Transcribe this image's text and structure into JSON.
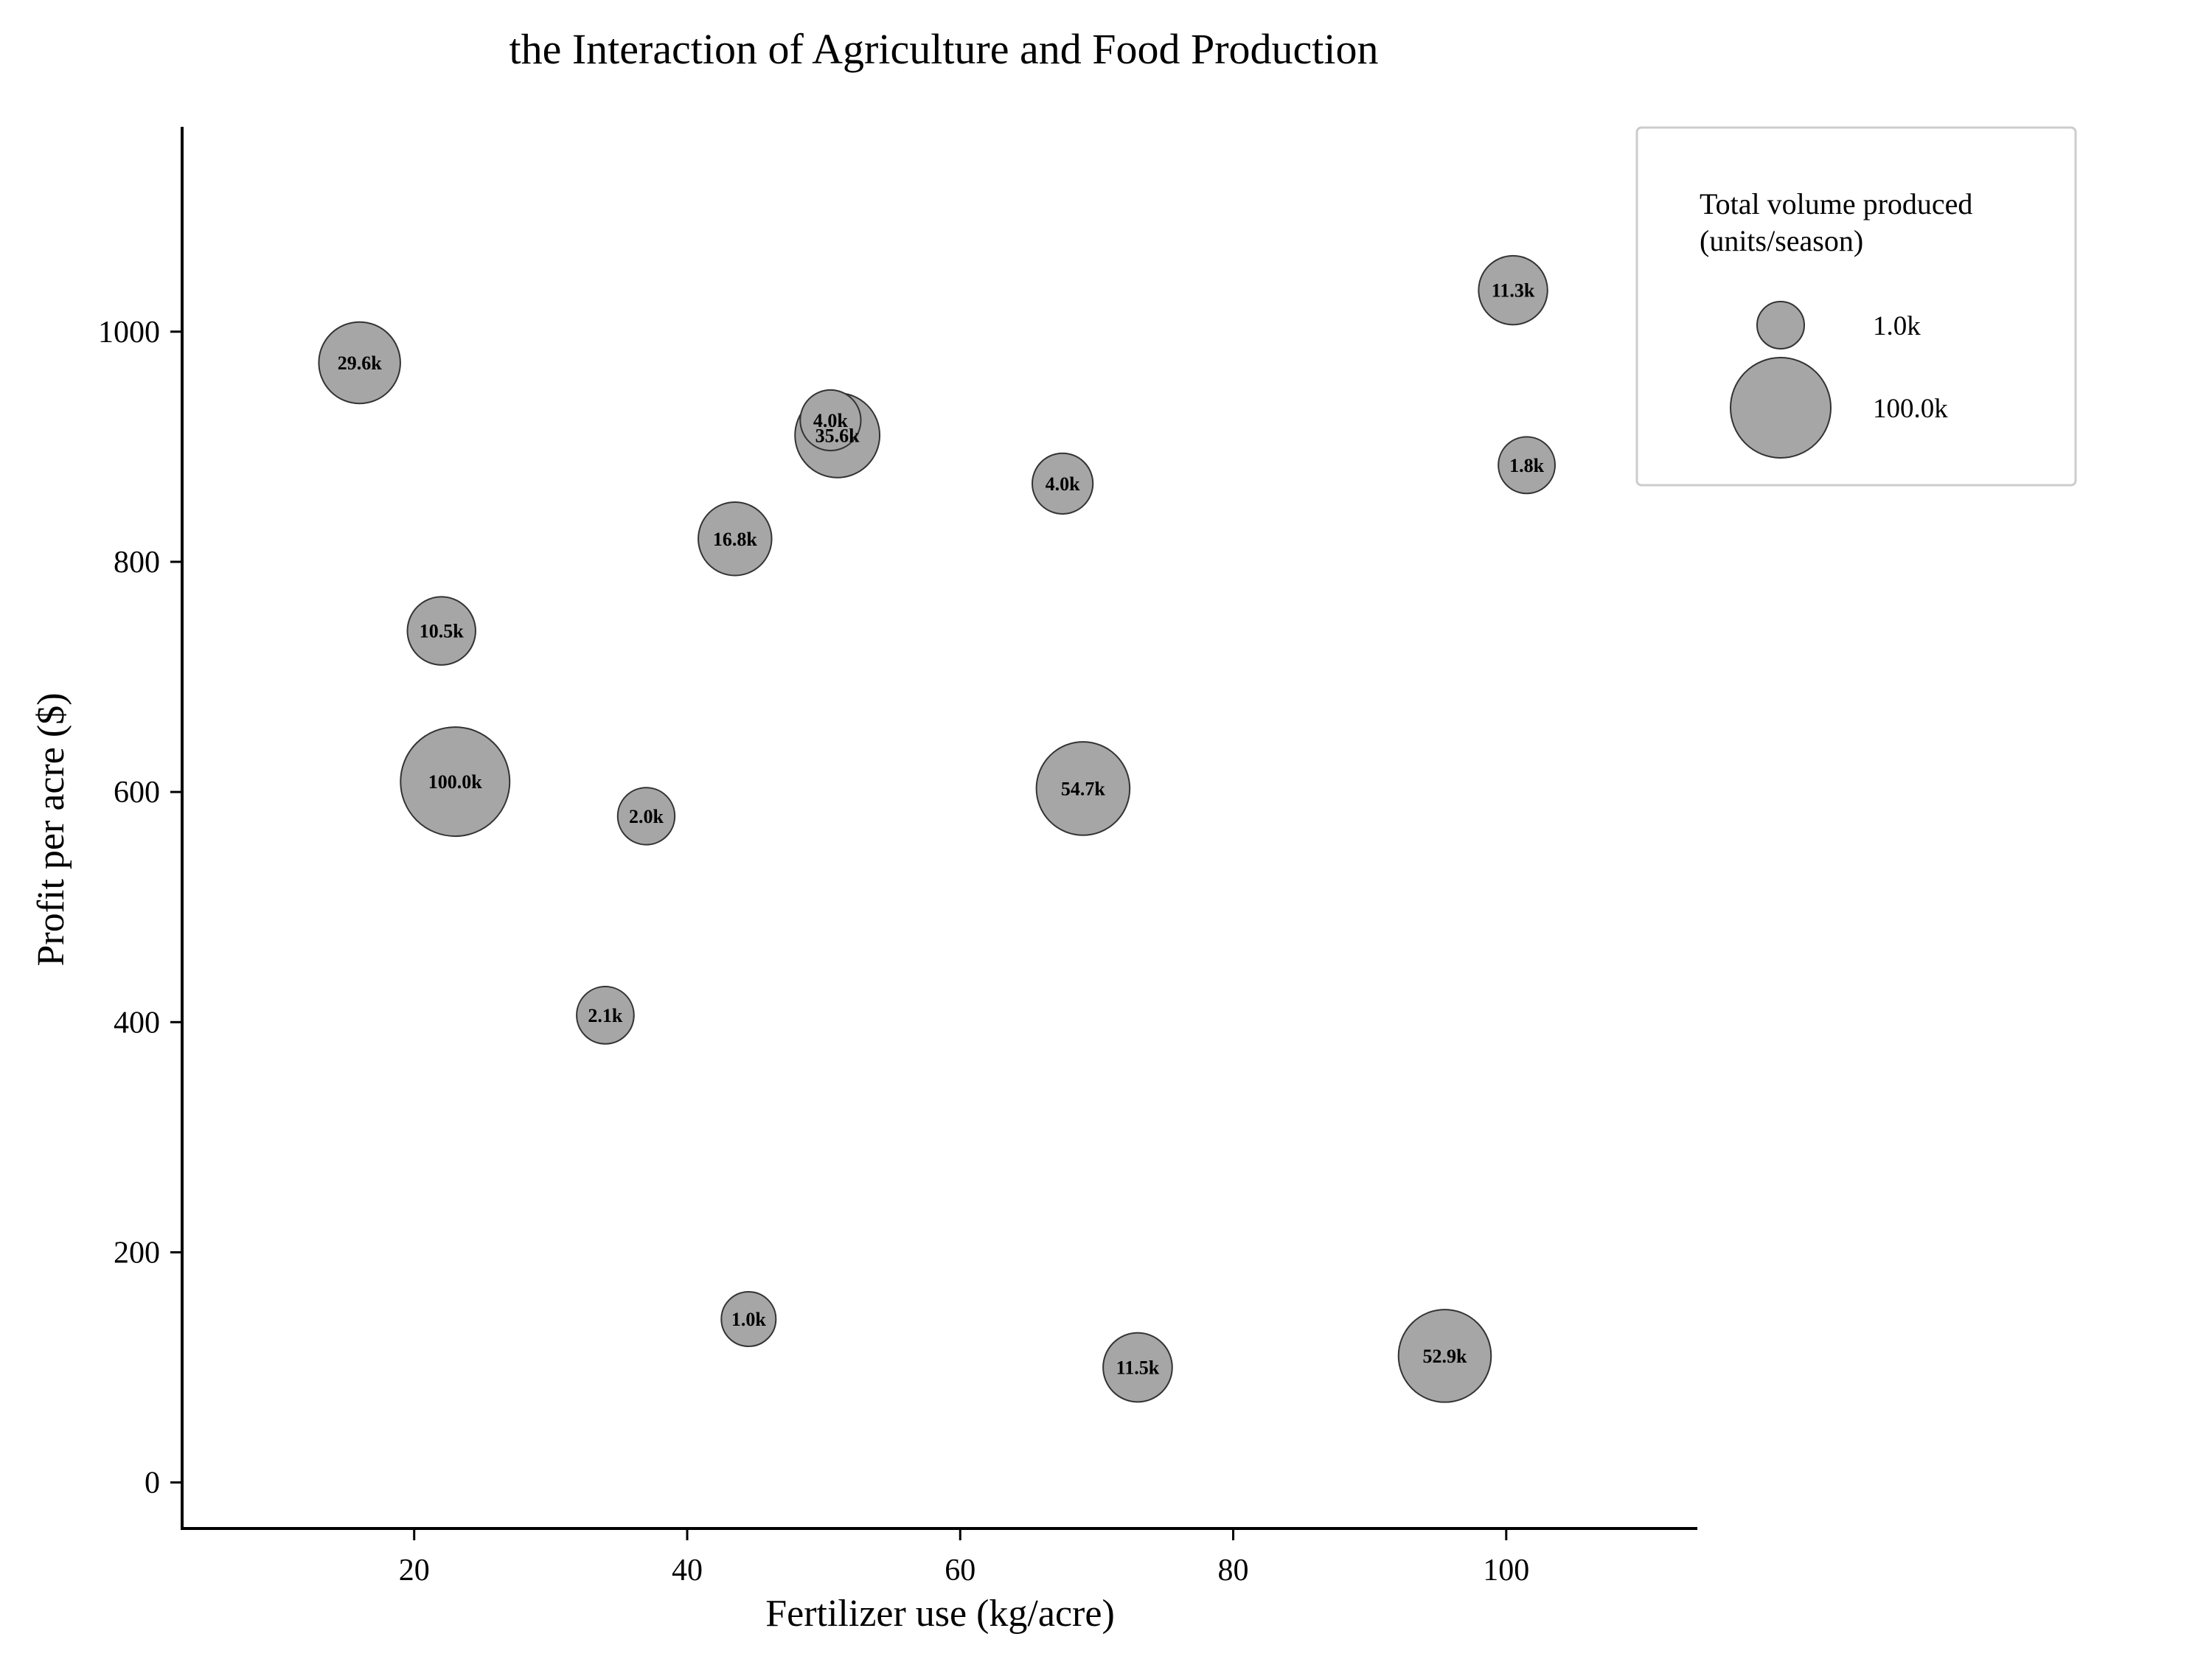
{
  "chart_data": {
    "type": "scatter",
    "title": "the Interaction of Agriculture and Food Production",
    "xlabel": "Fertilizer use (kg/acre)",
    "ylabel": "Profit per acre ($)",
    "xlim": [
      3,
      114
    ],
    "ylim": [
      -40,
      1178
    ],
    "xticks": [
      20,
      40,
      60,
      80,
      100
    ],
    "yticks": [
      0,
      200,
      400,
      600,
      800,
      1000
    ],
    "grid": false,
    "size_legend": {
      "title_lines": [
        "Total volume produced",
        "(units/season)"
      ],
      "placement": "top-right, outside plot",
      "entries": [
        {
          "label": "1.0k",
          "value": 1000
        },
        {
          "label": "100.0k",
          "value": 100000
        }
      ]
    },
    "points": [
      {
        "x": 16.0,
        "y": 973,
        "size": 29600,
        "label": "29.6k"
      },
      {
        "x": 22.0,
        "y": 740,
        "size": 10500,
        "label": "10.5k"
      },
      {
        "x": 23.0,
        "y": 609,
        "size": 100000,
        "label": "100.0k"
      },
      {
        "x": 37.0,
        "y": 579,
        "size": 2000,
        "label": "2.0k"
      },
      {
        "x": 34.0,
        "y": 406,
        "size": 2100,
        "label": "2.1k"
      },
      {
        "x": 43.5,
        "y": 820,
        "size": 16800,
        "label": "16.8k"
      },
      {
        "x": 44.5,
        "y": 142,
        "size": 1000,
        "label": "1.0k"
      },
      {
        "x": 51.0,
        "y": 910,
        "size": 35600,
        "label": "35.6k"
      },
      {
        "x": 50.5,
        "y": 923,
        "size": 4000,
        "label": "4.0k"
      },
      {
        "x": 67.5,
        "y": 868,
        "size": 4000,
        "label": "4.0k"
      },
      {
        "x": 69.0,
        "y": 603,
        "size": 54700,
        "label": "54.7k"
      },
      {
        "x": 73.0,
        "y": 100,
        "size": 11500,
        "label": "11.5k"
      },
      {
        "x": 95.5,
        "y": 110,
        "size": 52900,
        "label": "52.9k"
      },
      {
        "x": 100.5,
        "y": 1036,
        "size": 11300,
        "label": "11.3k"
      },
      {
        "x": 101.5,
        "y": 884,
        "size": 1800,
        "label": "1.8k"
      }
    ]
  }
}
